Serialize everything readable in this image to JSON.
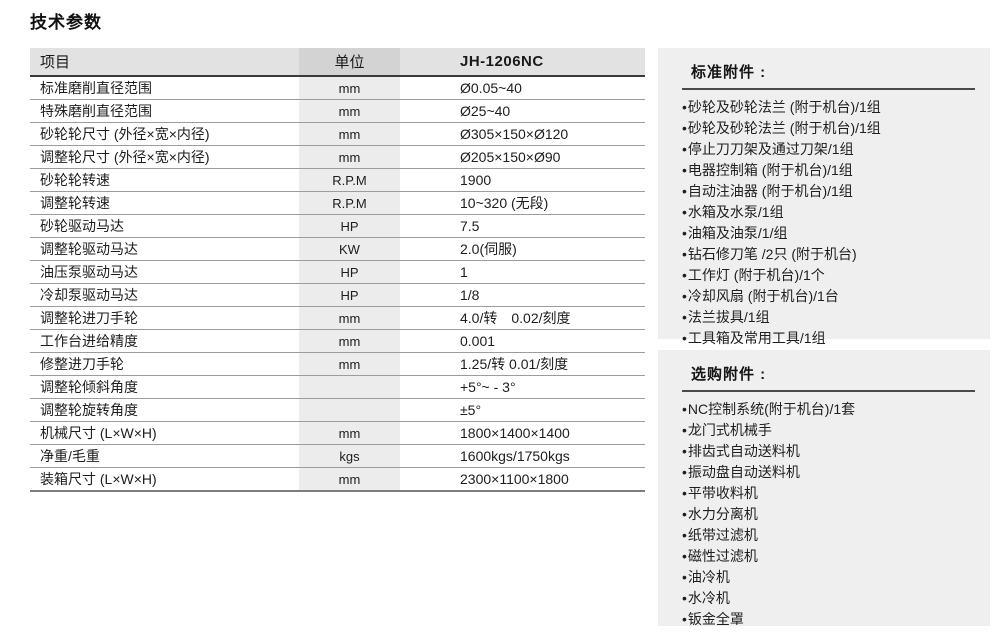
{
  "page_title": "技术参数",
  "colors": {
    "header_row_bg": "#e2e2e2",
    "unit_header_bg": "#d3d3d3",
    "unit_column_bg": "#ececec",
    "panel_bg": "#efefef",
    "heavy_border": "#3a3a3a",
    "row_border": "#9c9c9c"
  },
  "table": {
    "headers": {
      "item": "项目",
      "unit": "单位",
      "model": "JH-1206NC"
    },
    "rows": [
      {
        "item": "标准磨削直径范围",
        "unit": "mm",
        "value": "Ø0.05~40"
      },
      {
        "item": "特殊磨削直径范围",
        "unit": "mm",
        "value": "Ø25~40"
      },
      {
        "item": "砂轮轮尺寸 (外径×宽×内径)",
        "unit": "mm",
        "value": "Ø305×150×Ø120"
      },
      {
        "item": "调整轮尺寸 (外径×宽×内径)",
        "unit": "mm",
        "value": "Ø205×150×Ø90"
      },
      {
        "item": "砂轮轮转速",
        "unit": "R.P.M",
        "value": "1900"
      },
      {
        "item": "调整轮转速",
        "unit": "R.P.M",
        "value": "10~320 (无段)"
      },
      {
        "item": "砂轮驱动马达",
        "unit": "HP",
        "value": "7.5"
      },
      {
        "item": "调整轮驱动马达",
        "unit": "KW",
        "value": "2.0(伺服)"
      },
      {
        "item": "油压泵驱动马达",
        "unit": "HP",
        "value": "1"
      },
      {
        "item": "冷却泵驱动马达",
        "unit": "HP",
        "value": "1/8"
      },
      {
        "item": "调整轮进刀手轮",
        "unit": "mm",
        "value": "4.0/转　0.02/刻度"
      },
      {
        "item": "工作台进给精度",
        "unit": "mm",
        "value": "0.001"
      },
      {
        "item": "修整进刀手轮",
        "unit": "mm",
        "value": "1.25/转 0.01/刻度"
      },
      {
        "item": "调整轮倾斜角度",
        "unit": "",
        "value": "+5°~ - 3°"
      },
      {
        "item": "调整轮旋转角度",
        "unit": "",
        "value": "±5°"
      },
      {
        "item": "机械尺寸 (L×W×H)",
        "unit": "mm",
        "value": "1800×1400×1400"
      },
      {
        "item": "净重/毛重",
        "unit": "kgs",
        "value": "1600kgs/1750kgs"
      },
      {
        "item": "装箱尺寸 (L×W×H)",
        "unit": "mm",
        "value": "2300×1100×1800"
      }
    ]
  },
  "standard_accessories": {
    "title": "标准附件 :",
    "items": [
      "砂轮及砂轮法兰 (附于机台)/1组",
      "砂轮及砂轮法兰 (附于机台)/1组",
      "停止刀刀架及通过刀架/1组",
      "电器控制箱 (附于机台)/1组",
      "自动注油器 (附于机台)/1组",
      "水箱及水泵/1组",
      "油箱及油泵/1/组",
      "钻石修刀笔 /2只 (附于机台)",
      "工作灯 (附于机台)/1个",
      "冷却风扇 (附于机台)/1台",
      "法兰拔具/1组",
      "工具箱及常用工具/1组"
    ]
  },
  "optional_accessories": {
    "title": "选购附件 :",
    "items": [
      "NC控制系统(附于机台)/1套",
      "龙门式机械手",
      "排齿式自动送料机",
      "振动盘自动送料机",
      "平带收料机",
      "水力分离机",
      "纸带过滤机",
      "磁性过滤机",
      "油冷机",
      "水冷机",
      "钣金全罩"
    ]
  }
}
